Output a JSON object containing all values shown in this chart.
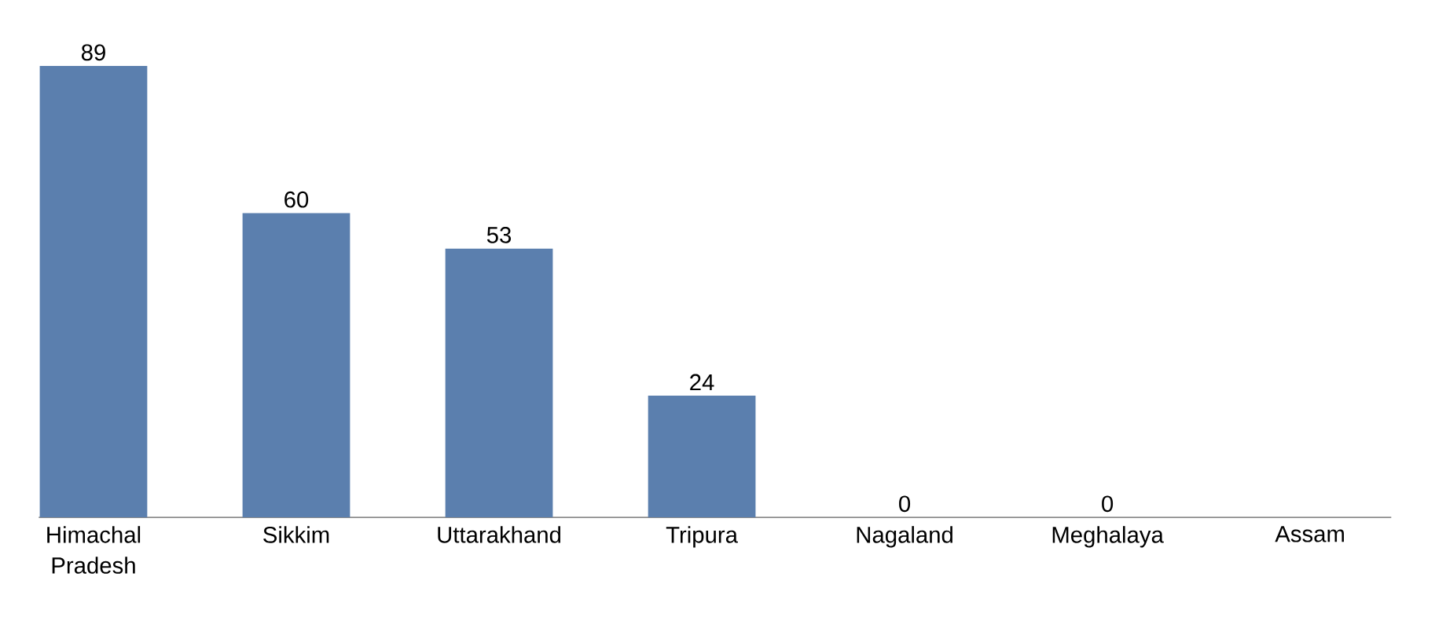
{
  "chart_data": {
    "type": "bar",
    "categories": [
      "Himachal Pradesh",
      "Sikkim",
      "Uttarakhand",
      "Tripura",
      "Nagaland",
      "Meghalaya",
      "Assam"
    ],
    "values": [
      89,
      60,
      53,
      24,
      0,
      0,
      null
    ],
    "value_labels": [
      "89",
      "60",
      "53",
      "24",
      "0",
      "0",
      null
    ],
    "color": "#5b7fae"
  }
}
